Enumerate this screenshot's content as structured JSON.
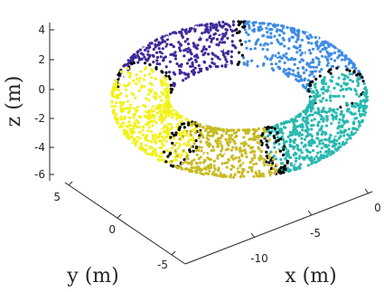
{
  "chart_data": {
    "type": "scatter",
    "title": "",
    "xlabel": "x (m)",
    "ylabel": "y (m)",
    "zlabel": "z (m)",
    "xlim": [
      -15,
      0
    ],
    "ylim": [
      -5,
      5
    ],
    "zlim": [
      -6,
      4
    ],
    "x_ticks": [
      "-10",
      "-5",
      "0"
    ],
    "y_ticks": [
      "-5",
      "0",
      "5"
    ],
    "z_ticks": [
      "-6",
      "-4",
      "-2",
      "0",
      "2",
      "4"
    ],
    "grid": false,
    "legend": "none",
    "torus": {
      "center": [
        -7.5,
        0,
        -1
      ],
      "major_radius": 7,
      "minor_radius": 2
    },
    "series": [
      {
        "color": "#3e2a9a",
        "angle_start_deg": 90,
        "angle_end_deg": 162
      },
      {
        "color": "#f2f21a",
        "angle_start_deg": 162,
        "angle_end_deg": 235
      },
      {
        "color": "#c8bb22",
        "angle_start_deg": 235,
        "angle_end_deg": 290
      },
      {
        "color": "#27b9b0",
        "angle_start_deg": 290,
        "angle_end_deg": 372
      },
      {
        "color": "#3e8ce6",
        "angle_start_deg": 12,
        "angle_end_deg": 90
      }
    ],
    "boundary_color": "#000000"
  }
}
